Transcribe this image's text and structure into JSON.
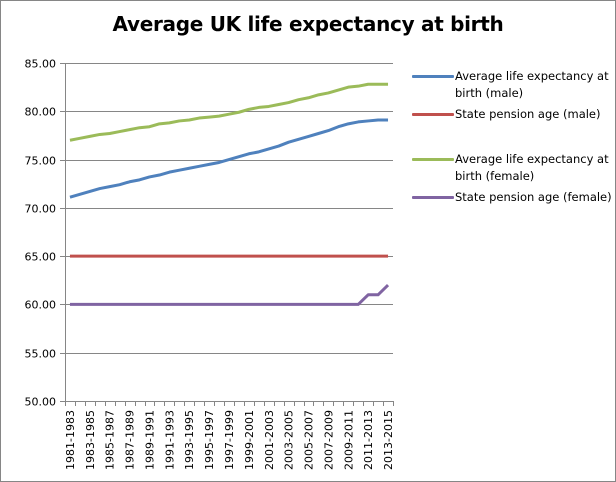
{
  "chart_data": {
    "type": "line",
    "title": "Average UK life expectancy at birth",
    "xlabel": "",
    "ylabel": "",
    "ylim": [
      50,
      85
    ],
    "yticks": [
      "50.00",
      "55.00",
      "60.00",
      "65.00",
      "70.00",
      "75.00",
      "80.00",
      "85.00"
    ],
    "ytick_values": [
      50,
      55,
      60,
      65,
      70,
      75,
      80,
      85
    ],
    "grid": true,
    "legend_position": "right",
    "categories": [
      "1981-1983",
      "1982-1984",
      "1983-1985",
      "1984-1986",
      "1985-1987",
      "1986-1988",
      "1987-1989",
      "1988-1990",
      "1989-1991",
      "1990-1992",
      "1991-1993",
      "1992-1994",
      "1993-1995",
      "1994-1996",
      "1995-1997",
      "1996-1998",
      "1997-1999",
      "1998-2000",
      "1999-2001",
      "2000-2002",
      "2001-2003",
      "2002-2004",
      "2003-2005",
      "2004-2006",
      "2005-2007",
      "2006-2008",
      "2007-2009",
      "2008-2010",
      "2009-2011",
      "2010-2012",
      "2011-2013",
      "2012-2014",
      "2013-2015"
    ],
    "xtick_labels_shown": [
      "1981-1983",
      "1983-1985",
      "1985-1987",
      "1987-1989",
      "1989-1991",
      "1991-1993",
      "1993-1995",
      "1995-1997",
      "1997-1999",
      "1999-2001",
      "2001-2003",
      "2003-2005",
      "2005-2007",
      "2007-2009",
      "2009-2011",
      "2011-2013",
      "2013-2015"
    ],
    "series": [
      {
        "name": "Average life expectancy at birth (male)",
        "color": "#4F81BD",
        "values": [
          71.1,
          71.4,
          71.7,
          72.0,
          72.2,
          72.4,
          72.7,
          72.9,
          73.2,
          73.4,
          73.7,
          73.9,
          74.1,
          74.3,
          74.5,
          74.7,
          75.0,
          75.3,
          75.6,
          75.8,
          76.1,
          76.4,
          76.8,
          77.1,
          77.4,
          77.7,
          78.0,
          78.4,
          78.7,
          78.9,
          79.0,
          79.1,
          79.1
        ]
      },
      {
        "name": "State pension age (male)",
        "color": "#C0504D",
        "values": [
          65,
          65,
          65,
          65,
          65,
          65,
          65,
          65,
          65,
          65,
          65,
          65,
          65,
          65,
          65,
          65,
          65,
          65,
          65,
          65,
          65,
          65,
          65,
          65,
          65,
          65,
          65,
          65,
          65,
          65,
          65,
          65,
          65
        ]
      },
      {
        "name": "Average life expectancy at birth (female)",
        "color": "#9BBB59",
        "values": [
          77.0,
          77.2,
          77.4,
          77.6,
          77.7,
          77.9,
          78.1,
          78.3,
          78.4,
          78.7,
          78.8,
          79.0,
          79.1,
          79.3,
          79.4,
          79.5,
          79.7,
          79.9,
          80.2,
          80.4,
          80.5,
          80.7,
          80.9,
          81.2,
          81.4,
          81.7,
          81.9,
          82.2,
          82.5,
          82.6,
          82.8,
          82.8,
          82.8
        ]
      },
      {
        "name": "State pension age (female)",
        "color": "#8064A2",
        "values": [
          60,
          60,
          60,
          60,
          60,
          60,
          60,
          60,
          60,
          60,
          60,
          60,
          60,
          60,
          60,
          60,
          60,
          60,
          60,
          60,
          60,
          60,
          60,
          60,
          60,
          60,
          60,
          60,
          60,
          60,
          61,
          61,
          62
        ]
      }
    ]
  }
}
